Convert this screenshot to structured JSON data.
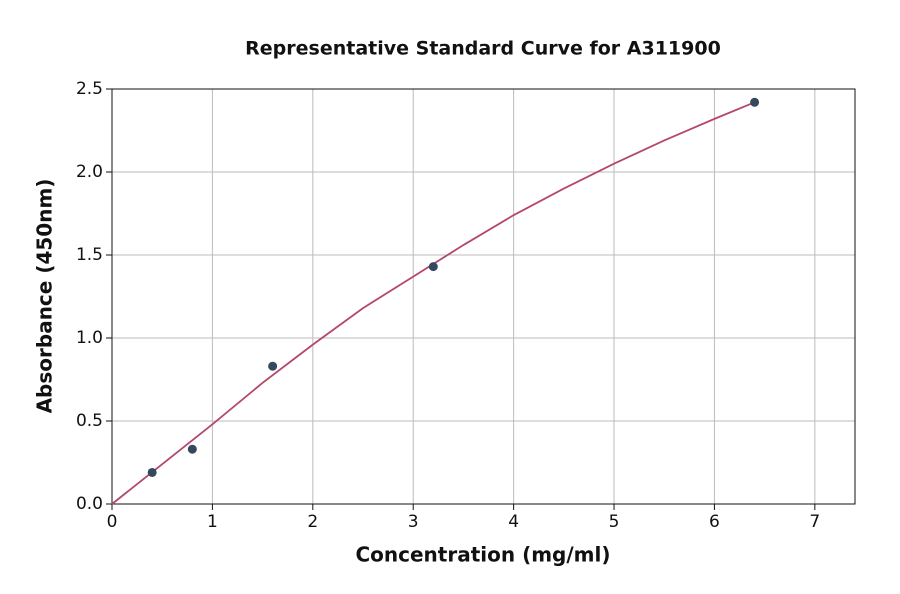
{
  "chart_data": {
    "type": "scatter",
    "title": "Representative Standard Curve for A311900",
    "x_label": "Concentration (mg/ml)",
    "y_label": "Absorbance (450nm)",
    "x": [
      0.4,
      0.8,
      1.6,
      3.2,
      6.4
    ],
    "values": [
      0.19,
      0.33,
      0.83,
      1.43,
      2.42
    ],
    "color": "#34495e",
    "fit": {
      "color": "#b5476b",
      "x": [
        0,
        0.5,
        1,
        1.5,
        2,
        2.5,
        3,
        3.5,
        4,
        4.5,
        5,
        5.5,
        6,
        6.4
      ],
      "values": [
        0,
        0.24,
        0.48,
        0.73,
        0.96,
        1.18,
        1.37,
        1.56,
        1.74,
        1.9,
        2.05,
        2.19,
        2.32,
        2.42
      ]
    },
    "xlim": [
      0,
      7.4
    ],
    "ylim": [
      0,
      2.5
    ],
    "xticks": [
      0,
      1,
      2,
      3,
      4,
      5,
      6,
      7
    ],
    "yticks": [
      {
        "value": 0,
        "label": "0.0"
      },
      0.5,
      {
        "value": 1,
        "label": "1.0"
      },
      1.5,
      {
        "value": 2,
        "label": "2.0"
      },
      2.5
    ],
    "grid": true
  }
}
